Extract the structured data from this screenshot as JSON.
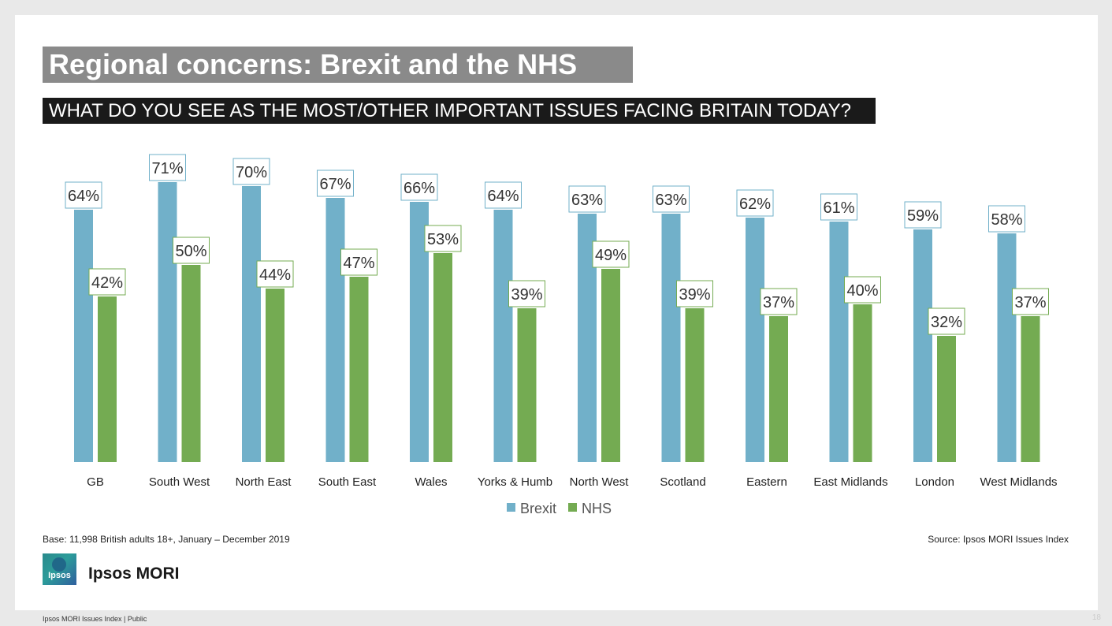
{
  "header": {
    "title": "Regional concerns: Brexit and the NHS",
    "question": "WHAT DO YOU SEE AS THE MOST/OTHER IMPORTANT ISSUES FACING BRITAIN TODAY?"
  },
  "chart_data": {
    "type": "bar",
    "categories": [
      "GB",
      "South West",
      "North East",
      "South East",
      "Wales",
      "Yorks & Humb",
      "North West",
      "Scotland",
      "Eastern",
      "East Midlands",
      "London",
      "West Midlands"
    ],
    "series": [
      {
        "name": "Brexit",
        "color": "#71b0c9",
        "label_border": "#71b0c9",
        "values": [
          64,
          71,
          70,
          67,
          66,
          64,
          63,
          63,
          62,
          61,
          59,
          58
        ]
      },
      {
        "name": "NHS",
        "color": "#74ab52",
        "label_border": "#74ab52",
        "values": [
          42,
          50,
          44,
          47,
          53,
          39,
          49,
          39,
          37,
          40,
          32,
          37
        ]
      }
    ],
    "value_suffix": "%",
    "ylim": [
      0,
      100
    ],
    "legend_position": "bottom-center",
    "grid": false
  },
  "footer": {
    "base": "Base: 11,998 British adults 18+, January – December 2019",
    "source": "Source: Ipsos MORI Issues Index",
    "brand": "Ipsos MORI",
    "logo_text": "Ipsos",
    "bottom_left": "Ipsos MORI Issues Index | Public",
    "page_number": "18"
  }
}
